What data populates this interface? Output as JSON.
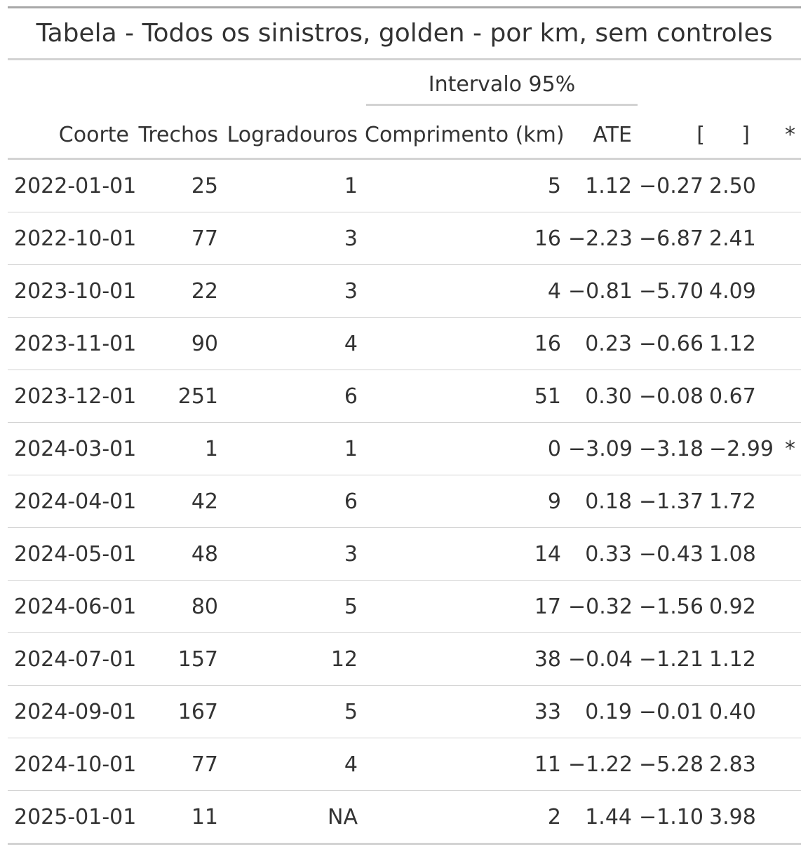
{
  "table": {
    "title": "Tabela - Todos os sinistros, golden - por km, sem controles",
    "spanner": "Intervalo 95%",
    "columns": {
      "coorte": "Coorte",
      "trechos": "Trechos",
      "logradouros": "Logradouros",
      "comprimento": "Comprimento (km)",
      "ate": "ATE",
      "ci_low": "[",
      "ci_high": "]",
      "sig": "*"
    },
    "rows": [
      {
        "coorte": "2022-01-01",
        "trechos": "25",
        "logradouros": "1",
        "comprimento": "5",
        "ate": "1.12",
        "ci_low": "−0.27",
        "ci_high": "2.50",
        "sig": ""
      },
      {
        "coorte": "2022-10-01",
        "trechos": "77",
        "logradouros": "3",
        "comprimento": "16",
        "ate": "−2.23",
        "ci_low": "−6.87",
        "ci_high": "2.41",
        "sig": ""
      },
      {
        "coorte": "2023-10-01",
        "trechos": "22",
        "logradouros": "3",
        "comprimento": "4",
        "ate": "−0.81",
        "ci_low": "−5.70",
        "ci_high": "4.09",
        "sig": ""
      },
      {
        "coorte": "2023-11-01",
        "trechos": "90",
        "logradouros": "4",
        "comprimento": "16",
        "ate": "0.23",
        "ci_low": "−0.66",
        "ci_high": "1.12",
        "sig": ""
      },
      {
        "coorte": "2023-12-01",
        "trechos": "251",
        "logradouros": "6",
        "comprimento": "51",
        "ate": "0.30",
        "ci_low": "−0.08",
        "ci_high": "0.67",
        "sig": ""
      },
      {
        "coorte": "2024-03-01",
        "trechos": "1",
        "logradouros": "1",
        "comprimento": "0",
        "ate": "−3.09",
        "ci_low": "−3.18",
        "ci_high": "−2.99",
        "sig": "*"
      },
      {
        "coorte": "2024-04-01",
        "trechos": "42",
        "logradouros": "6",
        "comprimento": "9",
        "ate": "0.18",
        "ci_low": "−1.37",
        "ci_high": "1.72",
        "sig": ""
      },
      {
        "coorte": "2024-05-01",
        "trechos": "48",
        "logradouros": "3",
        "comprimento": "14",
        "ate": "0.33",
        "ci_low": "−0.43",
        "ci_high": "1.08",
        "sig": ""
      },
      {
        "coorte": "2024-06-01",
        "trechos": "80",
        "logradouros": "5",
        "comprimento": "17",
        "ate": "−0.32",
        "ci_low": "−1.56",
        "ci_high": "0.92",
        "sig": ""
      },
      {
        "coorte": "2024-07-01",
        "trechos": "157",
        "logradouros": "12",
        "comprimento": "38",
        "ate": "−0.04",
        "ci_low": "−1.21",
        "ci_high": "1.12",
        "sig": ""
      },
      {
        "coorte": "2024-09-01",
        "trechos": "167",
        "logradouros": "5",
        "comprimento": "33",
        "ate": "0.19",
        "ci_low": "−0.01",
        "ci_high": "0.40",
        "sig": ""
      },
      {
        "coorte": "2024-10-01",
        "trechos": "77",
        "logradouros": "4",
        "comprimento": "11",
        "ate": "−1.22",
        "ci_low": "−5.28",
        "ci_high": "2.83",
        "sig": ""
      },
      {
        "coorte": "2025-01-01",
        "trechos": "11",
        "logradouros": "NA",
        "comprimento": "2",
        "ate": "1.44",
        "ci_low": "−1.10",
        "ci_high": "3.98",
        "sig": ""
      }
    ]
  }
}
